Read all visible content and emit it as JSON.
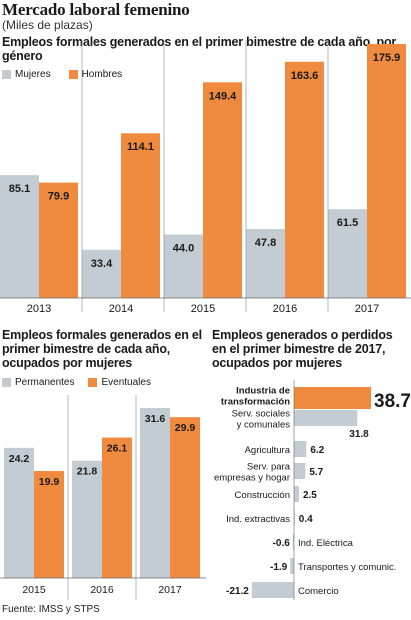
{
  "header": {
    "title": "Mercado laboral femenino",
    "subtitle": "(Miles de plazas)"
  },
  "colors": {
    "gray": "#c3ccd2",
    "orange": "#f08a3e",
    "text": "#1a1a1a"
  },
  "source": "Fuente: IMSS y STPS",
  "chart_data": [
    {
      "type": "bar",
      "title": "Empleos formales generados en el primer bimestre de cada año, por género",
      "categories": [
        "2013",
        "2014",
        "2015",
        "2016",
        "2017"
      ],
      "series": [
        {
          "name": "Mujeres",
          "color": "#c3ccd2",
          "values": [
            85.1,
            33.4,
            44.0,
            47.8,
            61.5
          ],
          "labels": [
            "85.1",
            "33.4",
            "44.0",
            "47.8",
            "61.5"
          ]
        },
        {
          "name": "Hombres",
          "color": "#f08a3e",
          "values": [
            79.9,
            114.1,
            149.4,
            163.6,
            175.9
          ],
          "labels": [
            "79.9",
            "114.1",
            "149.4",
            "163.6",
            "175.9"
          ]
        }
      ],
      "legend": "top-left",
      "grid": false
    },
    {
      "type": "bar",
      "title": "Empleos formales generados en el primer bimestre de cada año, ocupados por mujeres",
      "categories": [
        "2015",
        "2016",
        "2017"
      ],
      "series": [
        {
          "name": "Permanentes",
          "color": "#c3ccd2",
          "values": [
            24.2,
            21.8,
            31.6
          ],
          "labels": [
            "24.2",
            "21.8",
            "31.6"
          ]
        },
        {
          "name": "Eventuales",
          "color": "#f08a3e",
          "values": [
            19.9,
            26.1,
            29.9
          ],
          "labels": [
            "19.9",
            "26.1",
            "29.9"
          ]
        }
      ],
      "legend": "top-left",
      "grid": false
    },
    {
      "type": "bar",
      "orientation": "horizontal",
      "title": "Empleos generados o perdidos en el primer bimestre de 2017, ocupados por mujeres",
      "categories": [
        "Industria de transformación",
        "Serv. sociales y comunales",
        "Agricultura",
        "Serv. para empresas y hogar",
        "Construcción",
        "Ind. extractivas",
        "Ind. Eléctrica",
        "Transportes y comunic.",
        "Comercio"
      ],
      "category_lines": [
        [
          "Industria de",
          "transformación"
        ],
        [
          "Serv. sociales",
          "y comunales"
        ],
        [
          "Agricultura"
        ],
        [
          "Serv. para",
          "empresas y hogar"
        ],
        [
          "Construcción"
        ],
        [
          "Ind. extractivas"
        ],
        [
          "Ind. Eléctrica"
        ],
        [
          "Transportes y comunic."
        ],
        [
          "Comercio"
        ]
      ],
      "values": [
        38.7,
        31.8,
        6.2,
        5.7,
        2.5,
        0.4,
        -0.6,
        -1.9,
        -21.2
      ],
      "labels": [
        "38.7",
        "31.8",
        "6.2",
        "5.7",
        "2.5",
        "0.4",
        "-0.6",
        "-1.9",
        "-21.2"
      ],
      "highlight_index": 0,
      "grid": false
    }
  ]
}
